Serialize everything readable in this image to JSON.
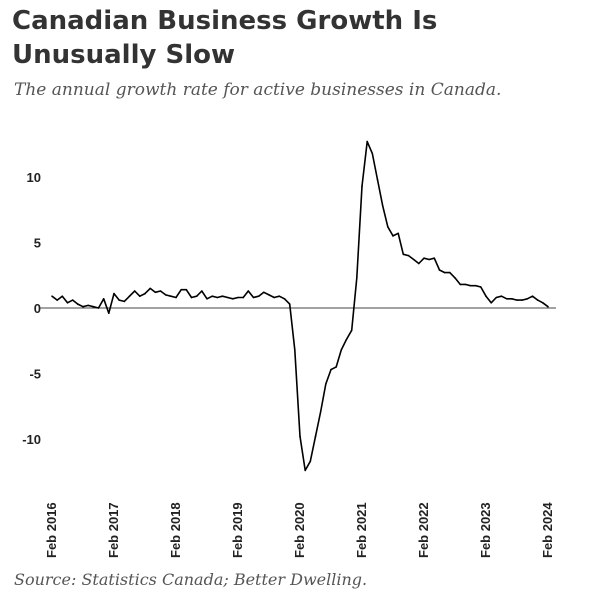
{
  "title": "Canadian Business Growth Is Unusually Slow",
  "subtitle": "The annual growth rate for active businesses in Canada.",
  "source": "Source: Statistics Canada; Better Dwelling.",
  "chart_data": {
    "type": "line",
    "title": "Canadian Business Growth Is Unusually Slow",
    "subtitle": "The annual growth rate for active businesses in Canada.",
    "xlabel": "",
    "ylabel": "",
    "ylim": [
      -13,
      13
    ],
    "yticks": [
      10,
      5,
      0,
      -5,
      -10
    ],
    "xtick_labels": [
      "Feb 2016",
      "Feb 2017",
      "Feb 2018",
      "Feb 2019",
      "Feb 2020",
      "Feb 2021",
      "Feb 2022",
      "Feb 2023",
      "Feb 2024"
    ],
    "grid": false,
    "zero_line": true,
    "line_color": "#000000",
    "series": [
      {
        "x": [
          "2016-02",
          "2016-03",
          "2016-04",
          "2016-05",
          "2016-06",
          "2016-07",
          "2016-08",
          "2016-09",
          "2016-10",
          "2016-11",
          "2016-12",
          "2017-01",
          "2017-02",
          "2017-03",
          "2017-04",
          "2017-05",
          "2017-06",
          "2017-07",
          "2017-08",
          "2017-09",
          "2017-10",
          "2017-11",
          "2017-12",
          "2018-01",
          "2018-02",
          "2018-03",
          "2018-04",
          "2018-05",
          "2018-06",
          "2018-07",
          "2018-08",
          "2018-09",
          "2018-10",
          "2018-11",
          "2018-12",
          "2019-01",
          "2019-02",
          "2019-03",
          "2019-04",
          "2019-05",
          "2019-06",
          "2019-07",
          "2019-08",
          "2019-09",
          "2019-10",
          "2019-11",
          "2019-12",
          "2020-01",
          "2020-02",
          "2020-03",
          "2020-04",
          "2020-05",
          "2020-06",
          "2020-07",
          "2020-08",
          "2020-09",
          "2020-10",
          "2020-11",
          "2020-12",
          "2021-01",
          "2021-02",
          "2021-03",
          "2021-04",
          "2021-05",
          "2021-06",
          "2021-07",
          "2021-08",
          "2021-09",
          "2021-10",
          "2021-11",
          "2021-12",
          "2022-01",
          "2022-02",
          "2022-03",
          "2022-04",
          "2022-05",
          "2022-06",
          "2022-07",
          "2022-08",
          "2022-09",
          "2022-10",
          "2022-11",
          "2022-12",
          "2023-01",
          "2023-02",
          "2023-03",
          "2023-04",
          "2023-05",
          "2023-06",
          "2023-07",
          "2023-08",
          "2023-09",
          "2023-10",
          "2023-11",
          "2023-12",
          "2024-01",
          "2024-02"
        ],
        "values": [
          0.9,
          0.6,
          0.9,
          0.4,
          0.6,
          0.3,
          0.1,
          0.2,
          0.1,
          0.0,
          0.7,
          -0.4,
          1.1,
          0.6,
          0.5,
          0.9,
          1.3,
          0.9,
          1.1,
          1.5,
          1.2,
          1.3,
          1.0,
          0.9,
          0.8,
          1.4,
          1.4,
          0.8,
          0.9,
          1.3,
          0.7,
          0.9,
          0.8,
          0.9,
          0.8,
          0.7,
          0.8,
          0.8,
          1.3,
          0.8,
          0.9,
          1.2,
          1.0,
          0.8,
          0.9,
          0.7,
          0.3,
          -3.2,
          -9.8,
          -12.4,
          -11.7,
          -9.8,
          -7.9,
          -5.8,
          -4.7,
          -4.5,
          -3.2,
          -2.4,
          -1.7,
          2.3,
          9.3,
          12.7,
          11.8,
          9.8,
          7.8,
          6.2,
          5.5,
          5.7,
          4.1,
          4.0,
          3.7,
          3.4,
          3.8,
          3.7,
          3.8,
          2.9,
          2.7,
          2.7,
          2.3,
          1.8,
          1.8,
          1.7,
          1.7,
          1.6,
          0.9,
          0.4,
          0.8,
          0.9,
          0.7,
          0.7,
          0.6,
          0.6,
          0.7,
          0.9,
          0.6,
          0.4,
          0.1
        ]
      }
    ]
  }
}
